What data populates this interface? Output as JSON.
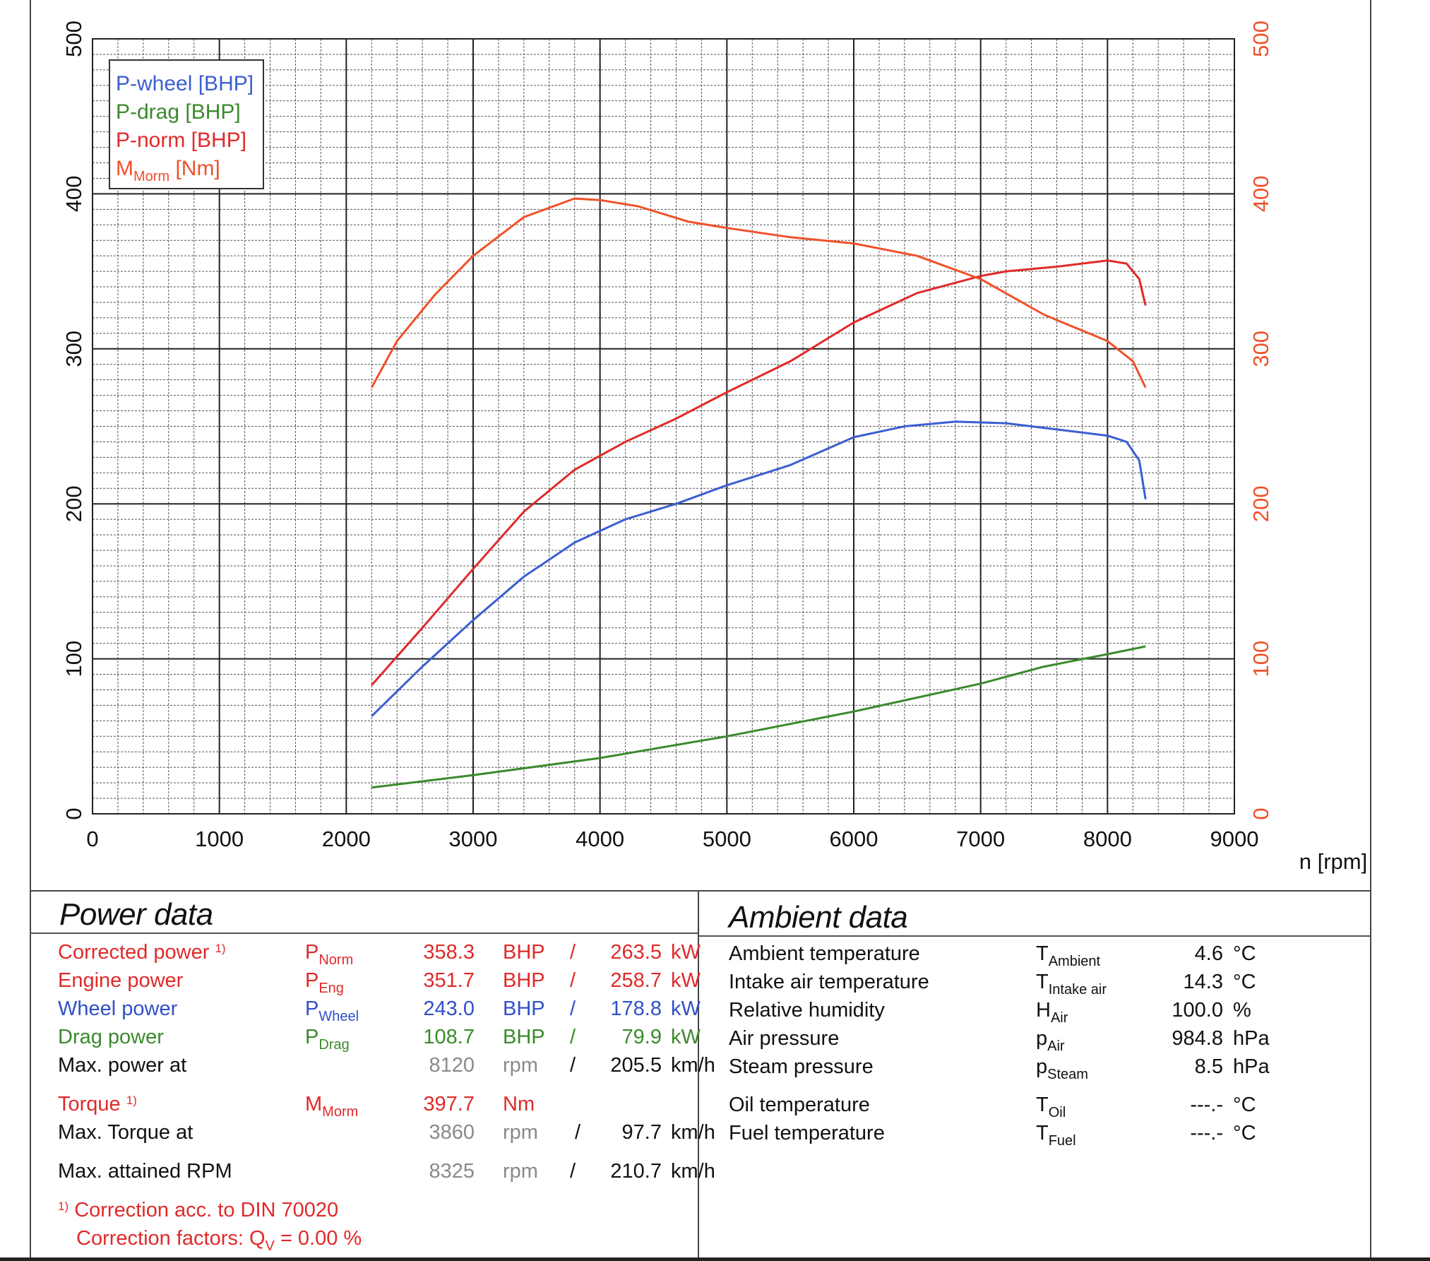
{
  "chart_data": {
    "type": "line",
    "xlabel": "n [rpm]",
    "xlim": [
      0,
      9000
    ],
    "x_ticks": [
      0,
      1000,
      2000,
      3000,
      4000,
      5000,
      6000,
      7000,
      8000,
      9000
    ],
    "ylim": [
      0,
      500
    ],
    "y_ticks": [
      0,
      100,
      200,
      300,
      400,
      500
    ],
    "y2lim": [
      0,
      500
    ],
    "y2_ticks": [
      0,
      100,
      200,
      300,
      400,
      500
    ],
    "grid": true,
    "legend_position": "top-left",
    "series": [
      {
        "name": "P-wheel [BHP]",
        "color": "#3a5fd0",
        "x": [
          2200,
          2600,
          3000,
          3400,
          3800,
          4200,
          4600,
          5000,
          5500,
          6000,
          6400,
          6800,
          7200,
          7600,
          8000,
          8150,
          8250,
          8300
        ],
        "y": [
          63,
          95,
          125,
          153,
          175,
          190,
          200,
          212,
          225,
          243,
          250,
          253,
          252,
          248,
          244,
          240,
          228,
          203
        ]
      },
      {
        "name": "P-drag [BHP]",
        "color": "#3a8a2c",
        "x": [
          2200,
          3000,
          4000,
          5000,
          6000,
          7000,
          7500,
          8000,
          8300
        ],
        "y": [
          17,
          25,
          36,
          50,
          66,
          84,
          95,
          103,
          108
        ]
      },
      {
        "name": "P-norm [BHP]",
        "color": "#e02a2a",
        "x": [
          2200,
          2600,
          3000,
          3400,
          3800,
          4200,
          4600,
          5000,
          5500,
          6000,
          6500,
          7000,
          7200,
          7600,
          8000,
          8150,
          8250,
          8300
        ],
        "y": [
          83,
          120,
          158,
          195,
          222,
          240,
          255,
          272,
          292,
          317,
          336,
          347,
          350,
          353,
          357,
          355,
          345,
          328
        ]
      },
      {
        "name": "MMorm [Nm]",
        "color": "#f0502a",
        "x": [
          2200,
          2400,
          2700,
          3000,
          3400,
          3800,
          4000,
          4300,
          4700,
          5000,
          5500,
          6000,
          6500,
          7000,
          7500,
          8000,
          8200,
          8300
        ],
        "y": [
          275,
          305,
          335,
          360,
          385,
          397,
          396,
          392,
          382,
          378,
          372,
          368,
          360,
          345,
          322,
          305,
          292,
          275
        ]
      }
    ]
  },
  "legend": {
    "items": [
      {
        "main": "P-wheel [BHP]",
        "sub": "",
        "tail": ""
      },
      {
        "main": "P-drag [BHP]",
        "sub": "",
        "tail": ""
      },
      {
        "main": "P-norm [BHP]",
        "sub": "",
        "tail": ""
      },
      {
        "main": "M",
        "sub": "Morm",
        "tail": " [Nm]"
      }
    ]
  },
  "power": {
    "title": "Power data",
    "rows": [
      {
        "label": "Corrected power",
        "mark": "1)",
        "sym": "P",
        "sym_sub": "Norm",
        "v1": "358.3",
        "u1": "BHP",
        "sep": "/",
        "v2": "263.5",
        "u2": "kW"
      },
      {
        "label": "Engine power",
        "mark": "",
        "sym": "P",
        "sym_sub": "Eng",
        "v1": "351.7",
        "u1": "BHP",
        "sep": "/",
        "v2": "258.7",
        "u2": "kW"
      },
      {
        "label": "Wheel power",
        "mark": "",
        "sym": "P",
        "sym_sub": "Wheel",
        "v1": "243.0",
        "u1": "BHP",
        "sep": "/",
        "v2": "178.8",
        "u2": "kW"
      },
      {
        "label": "Drag power",
        "mark": "",
        "sym": "P",
        "sym_sub": "Drag",
        "v1": "108.7",
        "u1": "BHP",
        "sep": "/",
        "v2": "79.9",
        "u2": "kW"
      },
      {
        "label": "Max. power at",
        "mark": "",
        "sym": "",
        "sym_sub": "",
        "v1": "8120",
        "u1": "rpm",
        "sep": "/",
        "v2": "205.5",
        "u2": "km/h"
      },
      {
        "label": "Torque",
        "mark": "1)",
        "sym": "M",
        "sym_sub": "Morm",
        "v1": "397.7",
        "u1": "Nm",
        "sep": "",
        "v2": "",
        "u2": ""
      },
      {
        "label": "Max. Torque at",
        "mark": "",
        "sym": "",
        "sym_sub": "",
        "v1": "3860",
        "u1": "rpm",
        "sep": "/",
        "v2": "97.7",
        "u2": "km/h"
      },
      {
        "label": "Max. attained RPM",
        "mark": "",
        "sym": "",
        "sym_sub": "",
        "v1": "8325",
        "u1": "rpm",
        "sep": "/",
        "v2": "210.7",
        "u2": "km/h"
      }
    ],
    "footnote_mark": "1)",
    "footnote": "Correction acc. to DIN 70020",
    "factors_label": "Correction factors: Q",
    "factors_sub": "V",
    "factors_value": "=   0.00 %"
  },
  "ambient": {
    "title": "Ambient data",
    "rows": [
      {
        "label": "Ambient temperature",
        "sym": "T",
        "sym_sub": "Ambient",
        "value": "4.6",
        "unit": "°C"
      },
      {
        "label": "Intake air temperature",
        "sym": "T",
        "sym_sub": "Intake air",
        "value": "14.3",
        "unit": "°C"
      },
      {
        "label": "Relative humidity",
        "sym": "H",
        "sym_sub": "Air",
        "value": "100.0",
        "unit": "%"
      },
      {
        "label": "Air pressure",
        "sym": "p",
        "sym_sub": "Air",
        "value": "984.8",
        "unit": "hPa"
      },
      {
        "label": "Steam pressure",
        "sym": "p",
        "sym_sub": "Steam",
        "value": "8.5",
        "unit": "hPa"
      },
      {
        "label": "Oil temperature",
        "sym": "T",
        "sym_sub": "Oil",
        "value": "---.-",
        "unit": "°C"
      },
      {
        "label": "Fuel temperature",
        "sym": "T",
        "sym_sub": "Fuel",
        "value": "---.-",
        "unit": "°C"
      }
    ]
  }
}
